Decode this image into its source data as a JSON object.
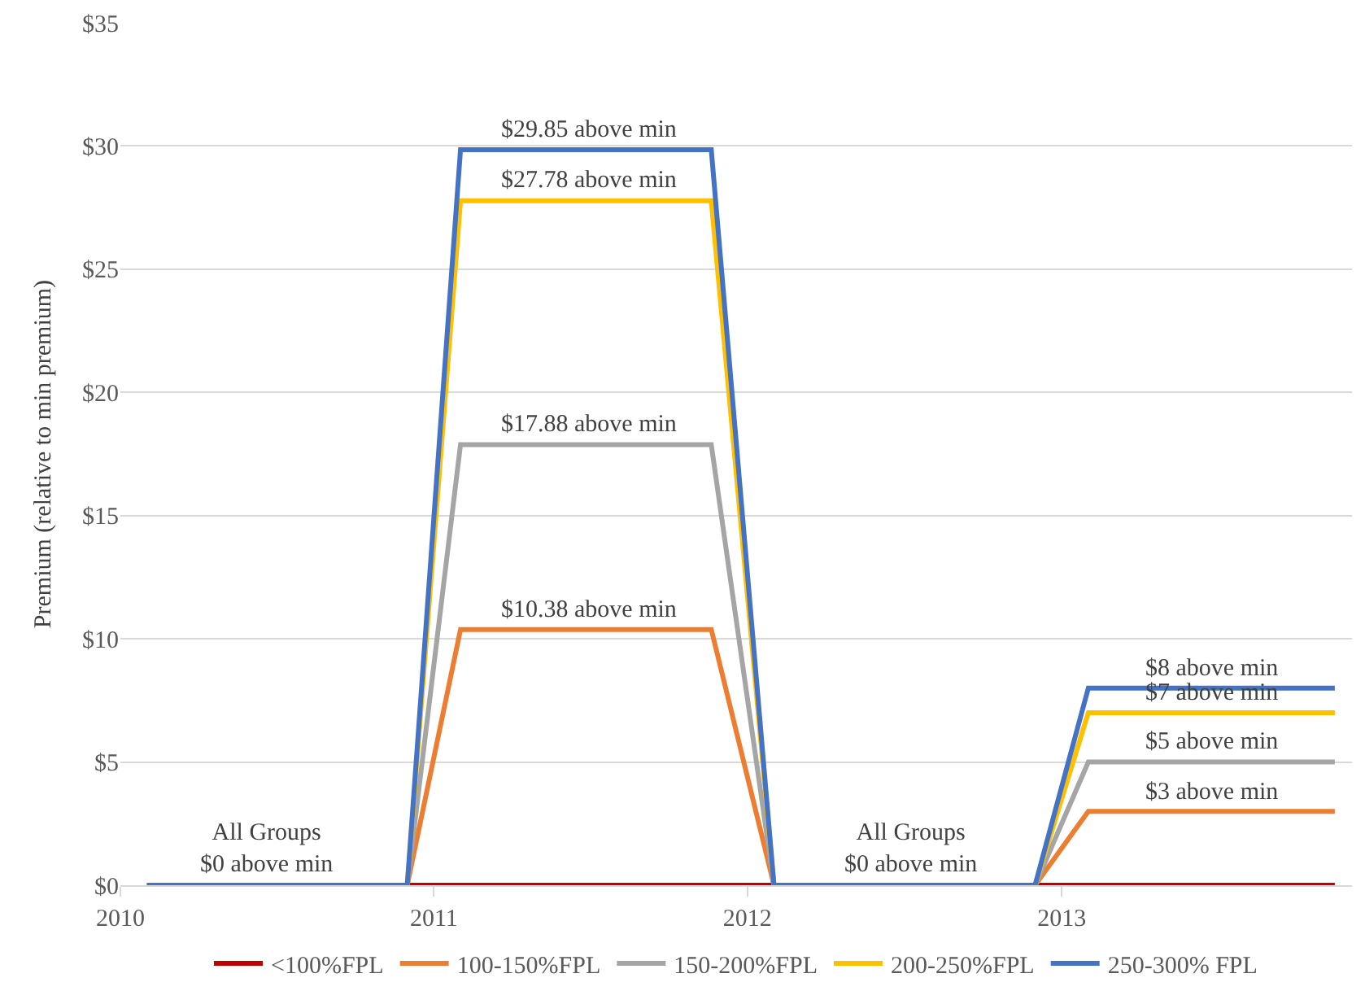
{
  "chart_data": {
    "type": "line",
    "ylabel": "Premium (relative to min premium)",
    "x": [
      "2010-02-01",
      "2010-12-01",
      "2011-02-01",
      "2011-11-20",
      "2012-02-01",
      "2012-12-01",
      "2013-02-01",
      "2013-11-15"
    ],
    "series": [
      {
        "name": "<100%FPL",
        "color": "#c00000",
        "values": [
          0,
          0,
          0,
          0,
          0,
          0,
          0,
          0
        ]
      },
      {
        "name": "100-150%FPL",
        "color": "#ed7d31",
        "values": [
          0,
          0,
          10.38,
          10.38,
          0,
          0,
          3,
          3
        ]
      },
      {
        "name": "150-200%FPL",
        "color": "#a5a5a5",
        "values": [
          0,
          0,
          17.88,
          17.88,
          0,
          0,
          5,
          5
        ]
      },
      {
        "name": "200-250%FPL",
        "color": "#ffc000",
        "values": [
          0,
          0,
          27.78,
          27.78,
          0,
          0,
          7,
          7
        ]
      },
      {
        "name": "250-300% FPL",
        "color": "#4472c4",
        "values": [
          0,
          0,
          29.85,
          29.85,
          0,
          0,
          8,
          8
        ]
      }
    ],
    "xlim": [
      "2010-01-01",
      "2013-12-05"
    ],
    "xticks": [
      {
        "value": "2010-01-01",
        "label": "2010"
      },
      {
        "value": "2011-01-01",
        "label": "2011"
      },
      {
        "value": "2012-01-01",
        "label": "2012"
      },
      {
        "value": "2013-01-01",
        "label": "2013"
      }
    ],
    "ylim": [
      0,
      35
    ],
    "yticks": [
      {
        "value": 0,
        "label": "$0"
      },
      {
        "value": 5,
        "label": "$5"
      },
      {
        "value": 10,
        "label": "$10"
      },
      {
        "value": 15,
        "label": "$15"
      },
      {
        "value": 20,
        "label": "$20"
      },
      {
        "value": 25,
        "label": "$25"
      },
      {
        "value": 30,
        "label": "$30"
      },
      {
        "value": 35,
        "label": "$35"
      }
    ],
    "grid": "y",
    "legend": "bottom",
    "marker": "none",
    "line_style": "solid",
    "annotations": [
      {
        "text": "$29.85 above min",
        "x": "2011-07-01",
        "y": 29.85
      },
      {
        "text": "$27.78 above min",
        "x": "2011-07-01",
        "y": 27.78
      },
      {
        "text": "$17.88 above min",
        "x": "2011-07-01",
        "y": 17.88
      },
      {
        "text": "$10.38 above min",
        "x": "2011-07-01",
        "y": 10.38
      },
      {
        "text": "All Groups\n$0 above min",
        "x": "2010-06-20",
        "y": 0
      },
      {
        "text": "All Groups\n$0 above min",
        "x": "2012-07-10",
        "y": 0
      },
      {
        "text": "$8 above min",
        "x": "2013-06-25",
        "y": 8
      },
      {
        "text": "$7 above min",
        "x": "2013-06-25",
        "y": 7
      },
      {
        "text": "$5 above min",
        "x": "2013-06-25",
        "y": 5
      },
      {
        "text": "$3 above min",
        "x": "2013-06-25",
        "y": 3
      }
    ]
  }
}
